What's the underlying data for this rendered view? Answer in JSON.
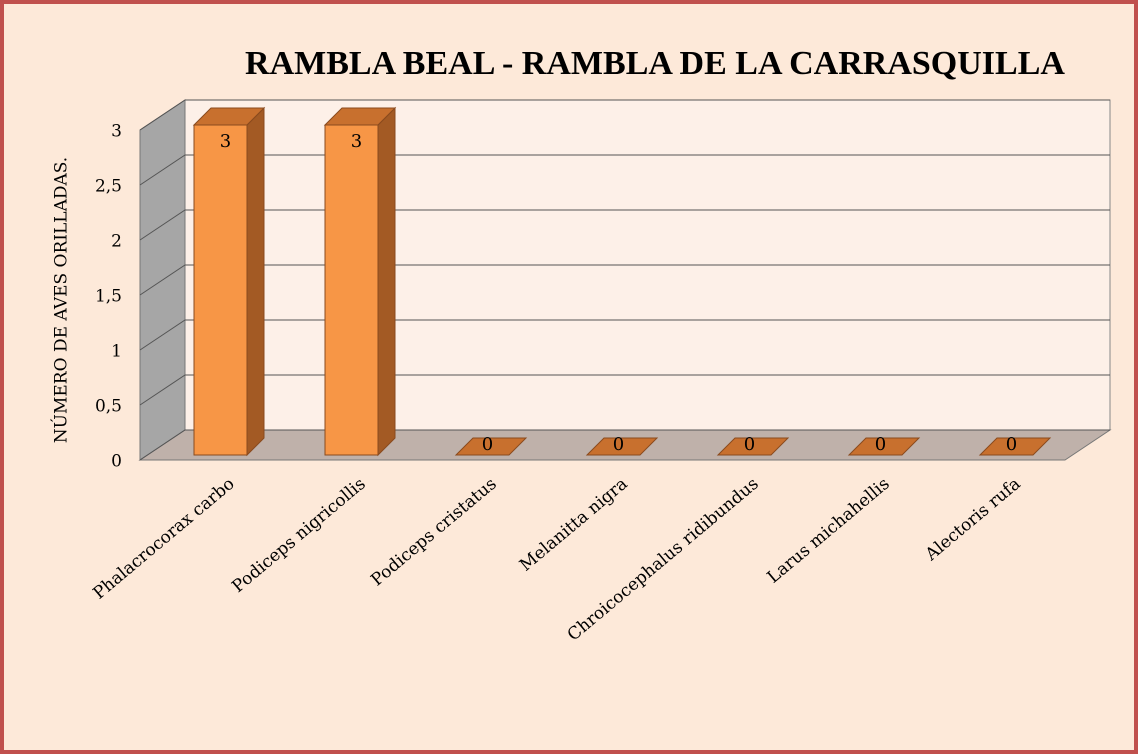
{
  "chart_data": {
    "type": "bar3d",
    "title": "RAMBLA BEAL -  RAMBLA DE LA CARRASQUILLA",
    "y_label": "NÚMERO DE AVES ORILLADAS.",
    "categories": [
      "Phalacrocorax carbo",
      "Podiceps nigricollis",
      "Podiceps cristatus",
      "Melanitta nigra",
      "Chroicocephalus ridibundus",
      "Larus michahellis",
      "Alectoris rufa"
    ],
    "values": [
      3,
      3,
      0,
      0,
      0,
      0,
      0
    ],
    "color": "#f79646",
    "ylim": [
      0,
      3
    ],
    "yticks": [
      0,
      {
        "value": 0.5,
        "label": "0,5"
      },
      1,
      {
        "value": 1.5,
        "label": "1,5"
      },
      2,
      {
        "value": 2.5,
        "label": "2,5"
      },
      3
    ],
    "grid": true
  }
}
